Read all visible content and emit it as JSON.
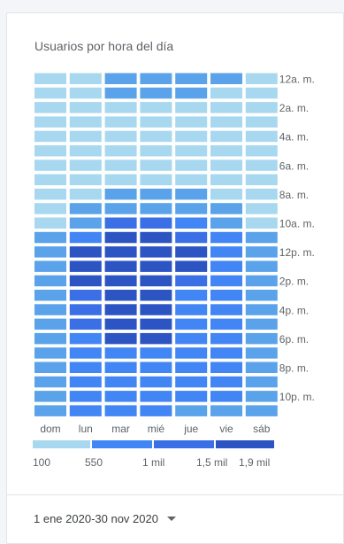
{
  "chart_data": {
    "type": "heatmap",
    "title": "Usuarios por hora del día",
    "x_labels": [
      "dom",
      "lun",
      "mar",
      "mié",
      "jue",
      "vie",
      "sáb"
    ],
    "y_tick_labels": [
      {
        "row": 0,
        "label": "12a. m."
      },
      {
        "row": 2,
        "label": "2a. m."
      },
      {
        "row": 4,
        "label": "4a. m."
      },
      {
        "row": 6,
        "label": "6a. m."
      },
      {
        "row": 8,
        "label": "8a. m."
      },
      {
        "row": 10,
        "label": "10a. m."
      },
      {
        "row": 12,
        "label": "12p. m."
      },
      {
        "row": 14,
        "label": "2p. m."
      },
      {
        "row": 16,
        "label": "4p. m."
      },
      {
        "row": 18,
        "label": "6p. m."
      },
      {
        "row": 20,
        "label": "8p. m."
      },
      {
        "row": 22,
        "label": "10p. m."
      }
    ],
    "values": [
      [
        100,
        300,
        900,
        900,
        900,
        700,
        100
      ],
      [
        100,
        300,
        700,
        700,
        700,
        300,
        100
      ],
      [
        100,
        100,
        100,
        100,
        100,
        100,
        100
      ],
      [
        100,
        100,
        100,
        100,
        100,
        100,
        100
      ],
      [
        100,
        100,
        100,
        100,
        100,
        100,
        100
      ],
      [
        100,
        100,
        100,
        100,
        100,
        100,
        100
      ],
      [
        100,
        100,
        100,
        100,
        100,
        100,
        100
      ],
      [
        100,
        100,
        100,
        100,
        100,
        100,
        100
      ],
      [
        100,
        100,
        600,
        550,
        550,
        300,
        100
      ],
      [
        100,
        700,
        900,
        900,
        900,
        600,
        100
      ],
      [
        300,
        900,
        1500,
        1500,
        1300,
        900,
        300
      ],
      [
        550,
        1300,
        1900,
        1900,
        1500,
        1100,
        550
      ],
      [
        700,
        1900,
        1900,
        1900,
        1900,
        1300,
        700
      ],
      [
        700,
        1900,
        1900,
        1900,
        1900,
        1300,
        900
      ],
      [
        900,
        1900,
        1900,
        1900,
        1500,
        1300,
        900
      ],
      [
        900,
        1500,
        1900,
        1900,
        1300,
        1300,
        900
      ],
      [
        900,
        1500,
        1900,
        1900,
        1300,
        1100,
        900
      ],
      [
        900,
        1500,
        1900,
        1900,
        1300,
        1100,
        900
      ],
      [
        900,
        1300,
        1900,
        1900,
        1300,
        1100,
        900
      ],
      [
        900,
        1300,
        1300,
        1300,
        1100,
        1100,
        900
      ],
      [
        900,
        1300,
        1100,
        1100,
        1100,
        1100,
        900
      ],
      [
        900,
        1300,
        1100,
        1100,
        1100,
        1100,
        900
      ],
      [
        900,
        1300,
        1300,
        1300,
        1100,
        1100,
        900
      ],
      [
        900,
        1100,
        1100,
        1100,
        900,
        900,
        550
      ]
    ],
    "color_scale": {
      "stops": [
        100,
        550,
        1000,
        1500,
        1900
      ],
      "stop_labels": [
        "100",
        "550",
        "1 mil",
        "1,5 mil",
        "1,9 mil"
      ],
      "colors": [
        "#a8d8ef",
        "#5aa3ea",
        "#4285f4",
        "#3b6fe6",
        "#2c54c2"
      ]
    },
    "legend_placement": "bottom"
  },
  "footer": {
    "date_range": "1 ene 2020-30 nov 2020"
  }
}
